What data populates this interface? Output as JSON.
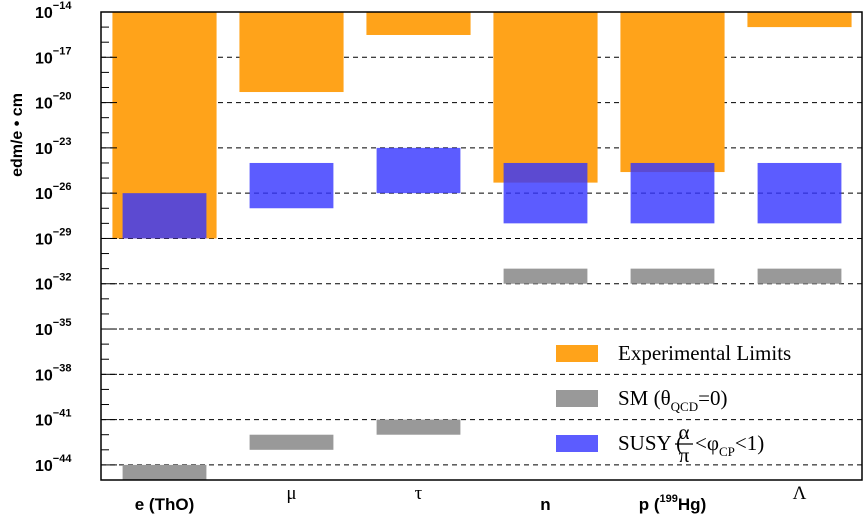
{
  "chart_data": {
    "type": "bar",
    "ylabel": "edm/e • cm",
    "y_scale": "log",
    "ylim": [
      1e-45,
      1e-14
    ],
    "y_ticks": [
      {
        "base": "10",
        "exp": "−14",
        "value": 1e-14
      },
      {
        "base": "10",
        "exp": "−17",
        "value": 1e-17
      },
      {
        "base": "10",
        "exp": "−20",
        "value": 1e-20
      },
      {
        "base": "10",
        "exp": "−23",
        "value": 1e-23
      },
      {
        "base": "10",
        "exp": "−26",
        "value": 1e-26
      },
      {
        "base": "10",
        "exp": "−29",
        "value": 1e-29
      },
      {
        "base": "10",
        "exp": "−32",
        "value": 1e-32
      },
      {
        "base": "10",
        "exp": "−35",
        "value": 1e-35
      },
      {
        "base": "10",
        "exp": "−38",
        "value": 1e-38
      },
      {
        "base": "10",
        "exp": "−41",
        "value": 1e-41
      },
      {
        "base": "10",
        "exp": "−44",
        "value": 1e-44
      }
    ],
    "grid": "dashed horizontal at major ticks",
    "categories": [
      {
        "label": "e (ThO)",
        "style": "bold"
      },
      {
        "label": "μ",
        "style": "serif"
      },
      {
        "label": "τ",
        "style": "serif"
      },
      {
        "label": "n",
        "style": "bold"
      },
      {
        "label": "p (",
        "sup": "199",
        "label_end": "Hg)",
        "style": "bold"
      },
      {
        "label": "Λ",
        "style": "serif"
      }
    ],
    "series": [
      {
        "name": "Experimental Limits",
        "color": "#ffa31a",
        "ranges": [
          [
            1e-29,
            1e-14
          ],
          [
            5e-20,
            1e-14
          ],
          [
            3e-16,
            1e-14
          ],
          [
            5e-26,
            1e-14
          ],
          [
            2.5e-25,
            1e-14
          ],
          [
            1e-15,
            1e-14
          ]
        ]
      },
      {
        "name": "SM (θQCD=0)",
        "color": "#999999",
        "ranges": [
          [
            1e-45,
            1e-44
          ],
          [
            1e-43,
            1e-42
          ],
          [
            1e-42,
            1e-41
          ],
          [
            1e-32,
            1e-31
          ],
          [
            1e-32,
            1e-31
          ],
          [
            1e-32,
            1e-31
          ]
        ]
      },
      {
        "name": "SUSY (α/π<φCP<1)",
        "color": "#3333ff",
        "ranges": [
          [
            1e-29,
            1e-26
          ],
          [
            1e-27,
            1e-24
          ],
          [
            1e-26,
            1e-23
          ],
          [
            1e-28,
            1e-24
          ],
          [
            1e-28,
            1e-24
          ],
          [
            1e-28,
            1e-24
          ]
        ]
      }
    ],
    "legend": {
      "position": "bottom-right",
      "items": [
        {
          "series": 0,
          "text": "Experimental Limits"
        },
        {
          "series": 1,
          "text": "SM (θ",
          "sub": "QCD",
          "text_end": "=0)"
        },
        {
          "series": 2,
          "text": "SUSY (",
          "frac_num": "α",
          "frac_den": "π",
          "mid": "<φ",
          "sub": "CP",
          "text_end": "<1)"
        }
      ]
    }
  }
}
